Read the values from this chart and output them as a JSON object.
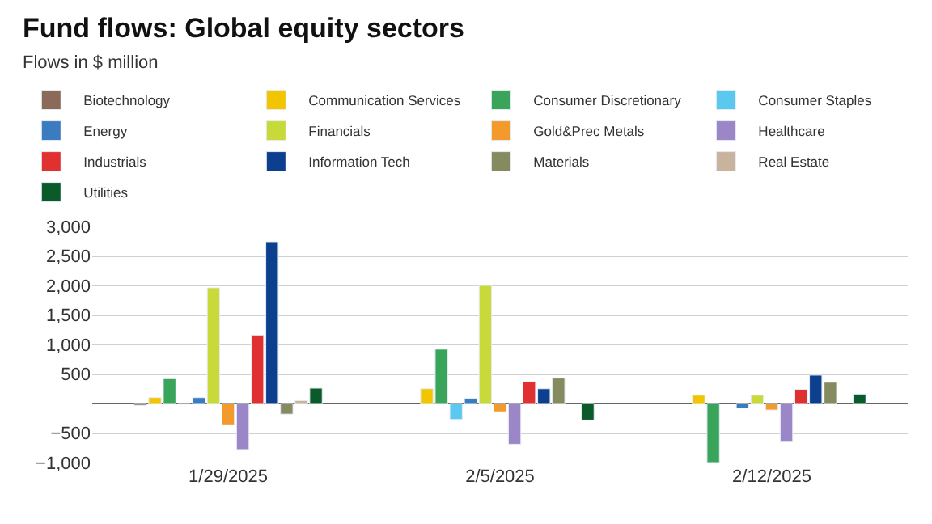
{
  "chart_data": {
    "type": "bar",
    "title": "Fund flows: Global equity sectors",
    "subtitle": "Flows in $ million",
    "categories": [
      "1/29/2025",
      "2/5/2025",
      "2/12/2025"
    ],
    "series": [
      {
        "name": "Biotechnology",
        "color": "#8b6a5a",
        "values": [
          -30,
          null,
          null
        ]
      },
      {
        "name": "Communication Services",
        "color": "#f2c500",
        "values": [
          100,
          250,
          140
        ]
      },
      {
        "name": "Consumer Discretionary",
        "color": "#3aa55a",
        "values": [
          420,
          920,
          -1000
        ]
      },
      {
        "name": "Consumer Staples",
        "color": "#5bc8f0",
        "values": [
          -10,
          -270,
          null
        ]
      },
      {
        "name": "Energy",
        "color": "#3b7bbf",
        "values": [
          100,
          90,
          -80
        ]
      },
      {
        "name": "Financials",
        "color": "#c8d93a",
        "values": [
          1960,
          2000,
          140
        ]
      },
      {
        "name": "Gold&Prec Metals",
        "color": "#f39a2c",
        "values": [
          -360,
          -140,
          -110
        ]
      },
      {
        "name": "Healthcare",
        "color": "#9b86c8",
        "values": [
          -780,
          -690,
          -640
        ]
      },
      {
        "name": "Industrials",
        "color": "#e03030",
        "values": [
          1160,
          370,
          240
        ]
      },
      {
        "name": "Information Tech",
        "color": "#0d3f8f",
        "values": [
          2740,
          250,
          480
        ]
      },
      {
        "name": "Materials",
        "color": "#858a5f",
        "values": [
          -180,
          430,
          360
        ]
      },
      {
        "name": "Real Estate",
        "color": "#c9b39c",
        "values": [
          50,
          null,
          null
        ]
      },
      {
        "name": "Utilities",
        "color": "#0a5a2a",
        "values": [
          260,
          -280,
          160
        ]
      }
    ],
    "ylim": [
      -1000,
      3000
    ],
    "yticks": [
      {
        "value": -1000,
        "label": "−1,000"
      },
      {
        "value": -500,
        "label": "−500"
      },
      {
        "value": 500,
        "label": "500"
      },
      {
        "value": 1000,
        "label": "1,000"
      },
      {
        "value": 1500,
        "label": "1,500"
      },
      {
        "value": 2000,
        "label": "2,000"
      },
      {
        "value": 2500,
        "label": "2,500"
      },
      {
        "value": 3000,
        "label": "3,000"
      }
    ],
    "grid": "y",
    "legend": "top"
  }
}
